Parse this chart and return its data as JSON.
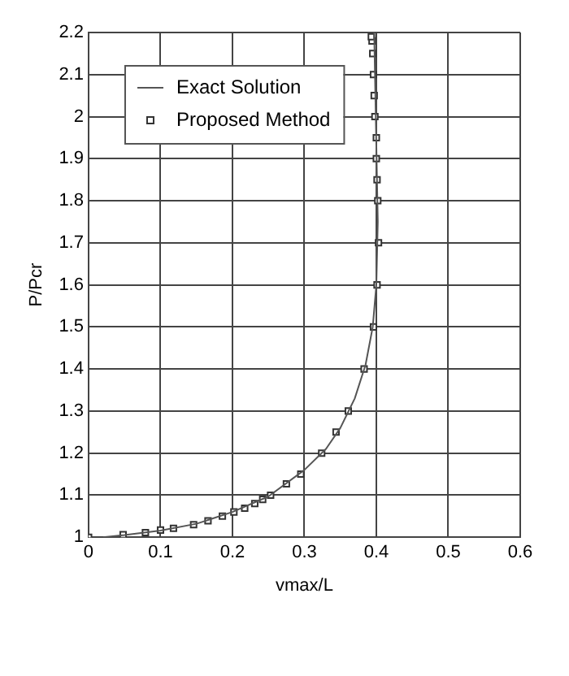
{
  "chart_data": {
    "type": "line",
    "xlabel": "vmax/L",
    "ylabel": "P/Pcr",
    "xlim": [
      0,
      0.6
    ],
    "xticks": [
      0,
      0.1,
      0.2,
      0.3,
      0.4,
      0.5,
      0.6
    ],
    "ylim": [
      1,
      2.2
    ],
    "yticks": [
      1,
      1.1,
      1.2,
      1.3,
      1.4,
      1.5,
      1.6,
      1.7,
      1.8,
      1.9,
      2,
      2.1,
      2.2
    ],
    "grid": true,
    "legend": "top left",
    "series": [
      {
        "name": "Exact Solution",
        "type": "line",
        "color": "#555555",
        "marker": "none",
        "x": [
          0.02,
          0.05,
          0.1,
          0.15,
          0.2,
          0.25,
          0.3,
          0.33,
          0.35,
          0.37,
          0.385,
          0.395,
          0.4,
          0.402,
          0.397
        ],
        "values": [
          1,
          1.005,
          1.016,
          1.032,
          1.06,
          1.097,
          1.16,
          1.21,
          1.26,
          1.33,
          1.41,
          1.5,
          1.6,
          1.75,
          2.2
        ]
      },
      {
        "name": "Proposed Method",
        "type": "scatter",
        "color": "#333333",
        "marker": "square",
        "x": [
          0,
          0.048,
          0.079,
          0.1,
          0.118,
          0.146,
          0.166,
          0.186,
          0.202,
          0.217,
          0.231,
          0.242,
          0.253,
          0.275,
          0.295,
          0.324,
          0.344,
          0.361,
          0.383,
          0.396,
          0.401,
          0.403,
          0.402,
          0.401,
          0.4,
          0.4,
          0.398,
          0.397,
          0.396,
          0.395,
          0.394,
          0.393
        ],
        "values": [
          1,
          1.006,
          1.011,
          1.017,
          1.021,
          1.03,
          1.039,
          1.05,
          1.06,
          1.069,
          1.08,
          1.09,
          1.1,
          1.127,
          1.15,
          1.2,
          1.25,
          1.3,
          1.4,
          1.5,
          1.6,
          1.7,
          1.8,
          1.85,
          1.9,
          1.95,
          2.0,
          2.05,
          2.1,
          2.15,
          2.18,
          2.19
        ]
      }
    ]
  }
}
